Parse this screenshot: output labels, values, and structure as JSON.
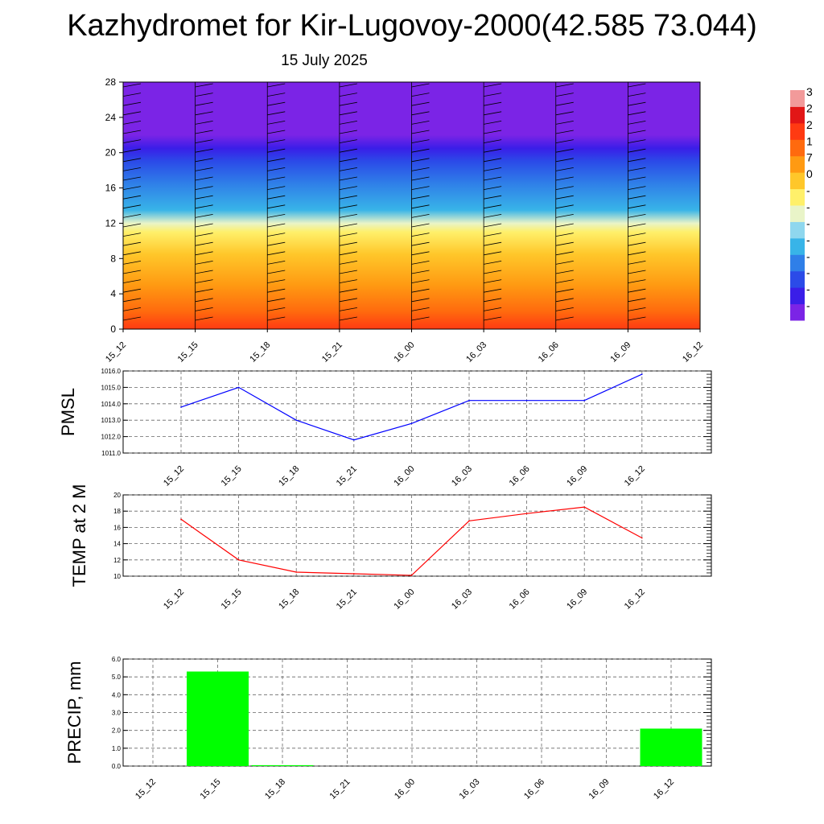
{
  "title": "Kazhydromet for Kir-Lugovoy-2000(42.585 73.044)",
  "subtitle": "15 July 2025",
  "colors": {
    "pmsl_line": "#0000ff",
    "temp_line": "#ff0000",
    "precip_bar": "#00ff00",
    "grid": "#666666",
    "barb": "#000000"
  },
  "chart_data": [
    {
      "type": "heatmap",
      "title": "",
      "x_tick_labels": [
        "15_12",
        "15_15",
        "15_18",
        "15_21",
        "16_00",
        "16_03",
        "16_06",
        "16_09",
        "16_12"
      ],
      "y_ticks": [
        0,
        4,
        8,
        12,
        16,
        20,
        24,
        28
      ],
      "ylim": [
        0,
        28
      ],
      "colorbar": {
        "colors": [
          "#7b24e6",
          "#3a1ee8",
          "#2b4be8",
          "#2f7fe8",
          "#38b4e8",
          "#8fd7ee",
          "#e9f4c8",
          "#fff06a",
          "#ffc72a",
          "#ff9a12",
          "#ff6a0e",
          "#ff3a12",
          "#e21616",
          "#f29a9a"
        ],
        "labels": [
          "3",
          "2",
          "2",
          "1",
          "7",
          "0",
          "-",
          "-",
          "-",
          "-",
          "-",
          "-",
          "-",
          "-"
        ]
      },
      "field_profile": [
        {
          "level": 0,
          "color": "#ff3a12"
        },
        {
          "level": 2,
          "color": "#ff6a0e"
        },
        {
          "level": 5,
          "color": "#ff9a12"
        },
        {
          "level": 8.5,
          "color": "#ffc72a"
        },
        {
          "level": 11,
          "color": "#fff06a"
        },
        {
          "level": 12,
          "color": "#e9f4c8"
        },
        {
          "level": 13.5,
          "color": "#38b4e8"
        },
        {
          "level": 16.5,
          "color": "#2f7fe8"
        },
        {
          "level": 19,
          "color": "#2b4be8"
        },
        {
          "level": 20.5,
          "color": "#3a1ee8"
        },
        {
          "level": 22,
          "color": "#7b24e6"
        },
        {
          "level": 28,
          "color": "#7b24e6"
        }
      ],
      "wind_barb_columns": [
        "15_12",
        "15_15",
        "15_18",
        "15_21",
        "16_00",
        "16_03",
        "16_06",
        "16_09",
        "16_12"
      ]
    },
    {
      "type": "line",
      "ylabel": "PMSL",
      "x": [
        "15_12",
        "15_15",
        "15_18",
        "15_21",
        "16_00",
        "16_03",
        "16_06",
        "16_09",
        "16_12"
      ],
      "values": [
        1013.8,
        1015.0,
        1013.0,
        1011.8,
        1012.8,
        1014.2,
        1014.2,
        1014.2,
        1015.8
      ],
      "ylim": [
        1011.0,
        1016.0
      ],
      "y_ticks": [
        "1011.0",
        "1012.0",
        "1013.0",
        "1014.0",
        "1015.0",
        "1016.0"
      ],
      "grid": true
    },
    {
      "type": "line",
      "ylabel": "TEMP at 2 M",
      "x": [
        "15_12",
        "15_15",
        "15_18",
        "15_21",
        "16_00",
        "16_03",
        "16_06",
        "16_09",
        "16_12"
      ],
      "values": [
        17.0,
        12.0,
        10.5,
        10.3,
        10.1,
        16.8,
        17.7,
        18.5,
        14.7
      ],
      "ylim": [
        10,
        20
      ],
      "y_ticks": [
        "10",
        "12",
        "14",
        "16",
        "18",
        "20"
      ],
      "grid": true
    },
    {
      "type": "bar",
      "ylabel": "PRECIP, mm",
      "categories": [
        "15_12",
        "15_15",
        "15_18",
        "15_21",
        "16_00",
        "16_03",
        "16_06",
        "16_09",
        "16_12"
      ],
      "values": [
        0.0,
        5.3,
        0.05,
        0.0,
        0.0,
        0.0,
        0.0,
        0.0,
        2.1
      ],
      "ylim": [
        0.0,
        6.0
      ],
      "y_ticks": [
        "0.0",
        "1.0",
        "2.0",
        "3.0",
        "4.0",
        "5.0",
        "6.0"
      ],
      "grid": true
    }
  ]
}
